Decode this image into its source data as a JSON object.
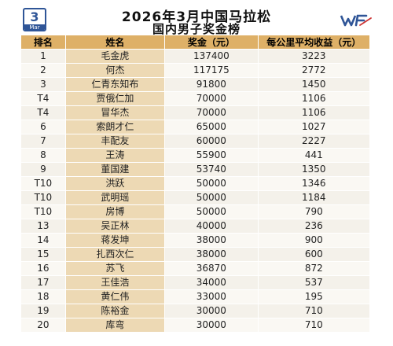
{
  "calendar": {
    "day": "3",
    "month": "Mar"
  },
  "title": {
    "line1": "2026年3月中国马拉松",
    "line2": "国内男子奖金榜"
  },
  "logo": {
    "text": "WF",
    "color": "#2f5597"
  },
  "colors": {
    "header": "#deb067",
    "name_cell": "#edd9b4",
    "row_odd": "#f4f1ea",
    "row_even": "#faf8f3",
    "accent": "#2f5597"
  },
  "table": {
    "headers": [
      "排名",
      "姓名",
      "奖金（元）",
      "每公里平均收益（元）"
    ],
    "rows": [
      {
        "rank": "1",
        "name": "毛金虎",
        "prize": "137400",
        "per_km": "3223"
      },
      {
        "rank": "2",
        "name": "何杰",
        "prize": "117175",
        "per_km": "2772"
      },
      {
        "rank": "3",
        "name": "仁青东知布",
        "prize": "91800",
        "per_km": "1450"
      },
      {
        "rank": "T4",
        "name": "贾俄仁加",
        "prize": "70000",
        "per_km": "1106"
      },
      {
        "rank": "T4",
        "name": "冒华杰",
        "prize": "70000",
        "per_km": "1106"
      },
      {
        "rank": "6",
        "name": "索朗才仁",
        "prize": "65000",
        "per_km": "1027"
      },
      {
        "rank": "7",
        "name": "丰配友",
        "prize": "60000",
        "per_km": "2227"
      },
      {
        "rank": "8",
        "name": "王涛",
        "prize": "55900",
        "per_km": "441"
      },
      {
        "rank": "9",
        "name": "董国建",
        "prize": "53740",
        "per_km": "1350"
      },
      {
        "rank": "T10",
        "name": "洪跃",
        "prize": "50000",
        "per_km": "1346"
      },
      {
        "rank": "T10",
        "name": "武明瑶",
        "prize": "50000",
        "per_km": "1184"
      },
      {
        "rank": "T10",
        "name": "房博",
        "prize": "50000",
        "per_km": "790"
      },
      {
        "rank": "13",
        "name": "吴正林",
        "prize": "40000",
        "per_km": "236"
      },
      {
        "rank": "14",
        "name": "蒋发坤",
        "prize": "38000",
        "per_km": "900"
      },
      {
        "rank": "15",
        "name": "扎西次仁",
        "prize": "38000",
        "per_km": "600"
      },
      {
        "rank": "16",
        "name": "苏飞",
        "prize": "36870",
        "per_km": "872"
      },
      {
        "rank": "17",
        "name": "王佳浩",
        "prize": "34000",
        "per_km": "537"
      },
      {
        "rank": "18",
        "name": "黄仁伟",
        "prize": "33000",
        "per_km": "195"
      },
      {
        "rank": "19",
        "name": "陈裕金",
        "prize": "30000",
        "per_km": "710"
      },
      {
        "rank": "20",
        "name": "库弯",
        "prize": "30000",
        "per_km": "710"
      }
    ]
  }
}
